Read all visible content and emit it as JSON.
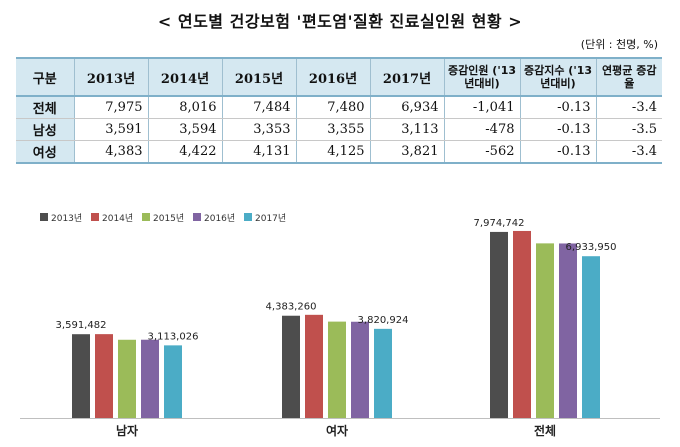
{
  "title": "< 연도별 건강보험 '편도염'질환 진료실인원 현황 >",
  "unit": "(단위 : 천명, %)",
  "table": {
    "headers": [
      "구분",
      "2013년",
      "2014년",
      "2015년",
      "2016년",
      "2017년",
      "증감인원 ('13년대비)",
      "증감지수 ('13년대비)",
      "연평균 증감율"
    ],
    "rows": [
      {
        "label": "전체",
        "values": [
          "7,975",
          "8,016",
          "7,484",
          "7,480",
          "6,934",
          "-1,041",
          "-0.13",
          "-3.4"
        ]
      },
      {
        "label": "남성",
        "values": [
          "3,591",
          "3,594",
          "3,353",
          "3,355",
          "3,113",
          "-478",
          "-0.13",
          "-3.5"
        ]
      },
      {
        "label": "여성",
        "values": [
          "4,383",
          "4,422",
          "4,131",
          "4,125",
          "3,821",
          "-562",
          "-0.13",
          "-3.4"
        ]
      }
    ]
  },
  "chart_data": {
    "type": "bar",
    "categories": [
      "남자",
      "여자",
      "전체"
    ],
    "series": [
      {
        "name": "2013년",
        "color": "#4d4d4d",
        "values": [
          3591482,
          4383260,
          7974742
        ]
      },
      {
        "name": "2014년",
        "color": "#c0504d",
        "values": [
          3594000,
          4422000,
          8016000
        ]
      },
      {
        "name": "2015년",
        "color": "#9bbb59",
        "values": [
          3353000,
          4131000,
          7484000
        ]
      },
      {
        "name": "2016년",
        "color": "#8064a2",
        "values": [
          3355000,
          4125000,
          7480000
        ]
      },
      {
        "name": "2017년",
        "color": "#4bacc6",
        "values": [
          3113026,
          3820924,
          6933950
        ]
      }
    ],
    "labels": [
      {
        "category": 0,
        "series": 0,
        "text": "3,591,482"
      },
      {
        "category": 0,
        "series": 4,
        "text": "3,113,026"
      },
      {
        "category": 1,
        "series": 0,
        "text": "4,383,260"
      },
      {
        "category": 1,
        "series": 4,
        "text": "3,820,924"
      },
      {
        "category": 2,
        "series": 0,
        "text": "7,974,742"
      },
      {
        "category": 2,
        "series": 4,
        "text": "6,933,950"
      }
    ],
    "ylim": [
      0,
      9000000
    ],
    "legend": "top-left",
    "grid": false
  }
}
